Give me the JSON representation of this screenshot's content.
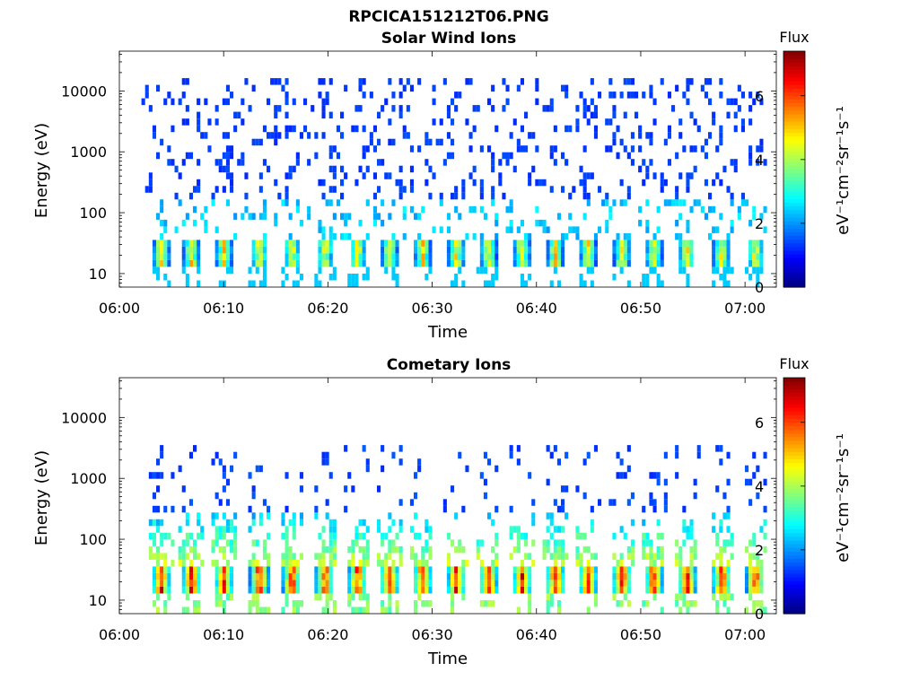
{
  "figure_title": "RPCICA151212T06.PNG",
  "chart_data": [
    {
      "type": "heatmap",
      "title": "Solar Wind Ions",
      "xlabel": "Time",
      "ylabel": "Energy (eV)",
      "x_ticks": [
        "06:00",
        "06:10",
        "06:20",
        "06:30",
        "06:40",
        "06:50",
        "07:00"
      ],
      "x_range": [
        "06:00",
        "07:03"
      ],
      "y_ticks": [
        "10",
        "100",
        "1000",
        "10000"
      ],
      "y_scale": "log",
      "y_range": [
        6,
        45000
      ],
      "colorbar": {
        "label": "Flux",
        "units": "eV⁻¹cm⁻²sr⁻¹s⁻¹",
        "ticks": [
          "0",
          "2",
          "4",
          "6"
        ],
        "range": [
          0,
          7.4
        ],
        "colormap": "jet"
      },
      "description_values": {
        "pulse_times_min": [
          4.1,
          7.0,
          10.2,
          13.6,
          16.8,
          20.0,
          23.2,
          26.3,
          29.5,
          32.8,
          35.9,
          39.2,
          42.4,
          45.6,
          48.9,
          52.0,
          55.2,
          58.6,
          61.9
        ],
        "peak_energy_eV": 25,
        "peak_flux": 5.5,
        "background_energy_range_eV": [
          100,
          15000
        ],
        "background_flux": 1.2
      }
    },
    {
      "type": "heatmap",
      "title": "Cometary Ions",
      "xlabel": "Time",
      "ylabel": "Energy (eV)",
      "x_ticks": [
        "06:00",
        "06:10",
        "06:20",
        "06:30",
        "06:40",
        "06:50",
        "07:00"
      ],
      "x_range": [
        "06:00",
        "07:03"
      ],
      "y_ticks": [
        "10",
        "100",
        "1000",
        "10000"
      ],
      "y_scale": "log",
      "y_range": [
        6,
        45000
      ],
      "colorbar": {
        "label": "Flux",
        "units": "eV⁻¹cm⁻²sr⁻¹s⁻¹",
        "ticks": [
          "0",
          "2",
          "4",
          "6"
        ],
        "range": [
          0,
          7.4
        ],
        "colormap": "jet"
      },
      "description_values": {
        "pulse_times_min": [
          4.1,
          7.0,
          10.2,
          13.6,
          16.8,
          20.0,
          23.2,
          26.3,
          29.5,
          32.8,
          35.9,
          39.2,
          42.4,
          45.6,
          48.9,
          52.0,
          55.2,
          58.6,
          61.9
        ],
        "peak_energy_eV": 25,
        "peak_flux": 7.2,
        "tail_energy_range_eV": [
          60,
          3000
        ]
      }
    }
  ]
}
